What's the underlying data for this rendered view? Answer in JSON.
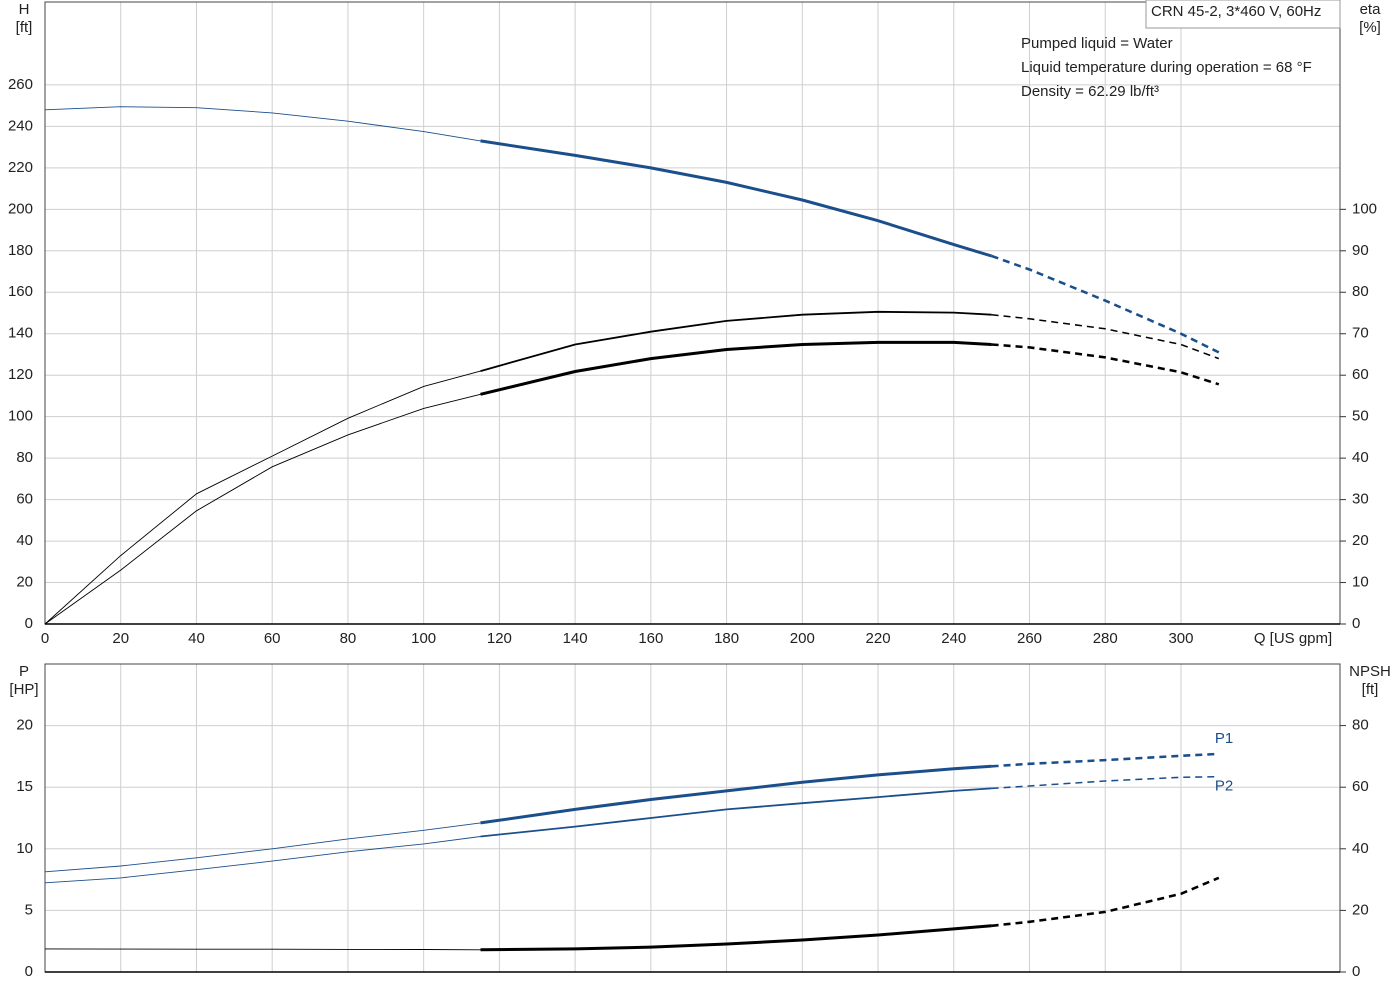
{
  "chart_data": [
    {
      "type": "line",
      "title": "CRN 45-2, 3*460 V, 60Hz",
      "annotations": [
        "Pumped liquid = Water",
        "Liquid temperature during operation = 68 °F",
        "Density = 62.29 lb/ft³"
      ],
      "xlabel": "Q [US gpm]",
      "ylabel": "H",
      "yunit": "[ft]",
      "y2label": "eta",
      "y2unit": "[%]",
      "x": [
        0,
        20,
        40,
        60,
        80,
        100,
        115,
        140,
        160,
        180,
        200,
        220,
        240,
        250,
        260,
        280,
        300,
        310
      ],
      "xlim": [
        0,
        342
      ],
      "xticks": [
        0,
        20,
        40,
        60,
        80,
        100,
        120,
        140,
        160,
        180,
        200,
        220,
        240,
        260,
        280,
        300
      ],
      "ylim": [
        0,
        300
      ],
      "yticks": [
        0,
        20,
        40,
        60,
        80,
        100,
        120,
        140,
        160,
        180,
        200,
        220,
        240,
        260
      ],
      "y2lim": [
        0,
        150
      ],
      "y2ticks": [
        0,
        10,
        20,
        30,
        40,
        50,
        60,
        70,
        80,
        90,
        100
      ],
      "grid": true,
      "duty_range": [
        115,
        250
      ],
      "series": [
        {
          "color": "#1b4f8c",
          "width": 3,
          "values": [
            248,
            249.5,
            249,
            246.5,
            242.5,
            237.5,
            233,
            226,
            220,
            213,
            204.5,
            194.5,
            183,
            177.5,
            171,
            156,
            140,
            131
          ]
        },
        {
          "color": "#000000",
          "width": 1.8,
          "axis": "y2",
          "values": [
            0,
            16.5,
            31.4,
            40.5,
            49.6,
            57.3,
            61,
            67.4,
            70.5,
            73.1,
            74.6,
            75.3,
            75.1,
            74.6,
            73.6,
            71.2,
            67.4,
            64
          ]
        },
        {
          "color": "#000000",
          "width": 3,
          "axis": "y2",
          "values": [
            0,
            13,
            27.3,
            37.9,
            45.6,
            52,
            55.4,
            60.9,
            64,
            66.2,
            67.4,
            67.9,
            67.9,
            67.4,
            66.7,
            64.3,
            60.7,
            57.8
          ]
        }
      ]
    },
    {
      "type": "line",
      "ylabel": "P",
      "yunit": "[HP]",
      "y2label": "NPSH",
      "y2unit": "[ft]",
      "x": [
        0,
        20,
        40,
        60,
        80,
        100,
        115,
        140,
        160,
        180,
        200,
        220,
        240,
        250,
        260,
        280,
        300,
        310
      ],
      "xlim": [
        0,
        342
      ],
      "xticks": [
        0,
        20,
        40,
        60,
        80,
        100,
        120,
        140,
        160,
        180,
        200,
        220,
        240,
        260,
        280,
        300
      ],
      "ylim": [
        0,
        25
      ],
      "yticks": [
        0,
        5,
        10,
        15,
        20
      ],
      "y2lim": [
        0,
        100
      ],
      "y2ticks": [
        0,
        20,
        40,
        60,
        80
      ],
      "grid": true,
      "duty_range": [
        115,
        250
      ],
      "series": [
        {
          "name": "P1",
          "color": "#1b4f8c",
          "width": 3,
          "values": [
            8.13,
            8.6,
            9.27,
            10,
            10.8,
            11.5,
            12.1,
            13.2,
            14,
            14.7,
            15.4,
            16,
            16.5,
            16.7,
            16.9,
            17.2,
            17.55,
            17.7
          ]
        },
        {
          "name": "P2",
          "color": "#1b4f8c",
          "width": 1.8,
          "values": [
            7.24,
            7.64,
            8.3,
            9,
            9.76,
            10.4,
            11,
            11.8,
            12.5,
            13.2,
            13.7,
            14.2,
            14.7,
            14.9,
            15.1,
            15.5,
            15.8,
            15.85
          ]
        },
        {
          "color": "#000000",
          "width": 3,
          "axis": "y2",
          "values": [
            7.5,
            7.45,
            7.4,
            7.4,
            7.35,
            7.3,
            7.2,
            7.5,
            8.1,
            9.1,
            10.4,
            12,
            14,
            15,
            16.3,
            19.5,
            25.4,
            30.6
          ]
        }
      ]
    }
  ]
}
